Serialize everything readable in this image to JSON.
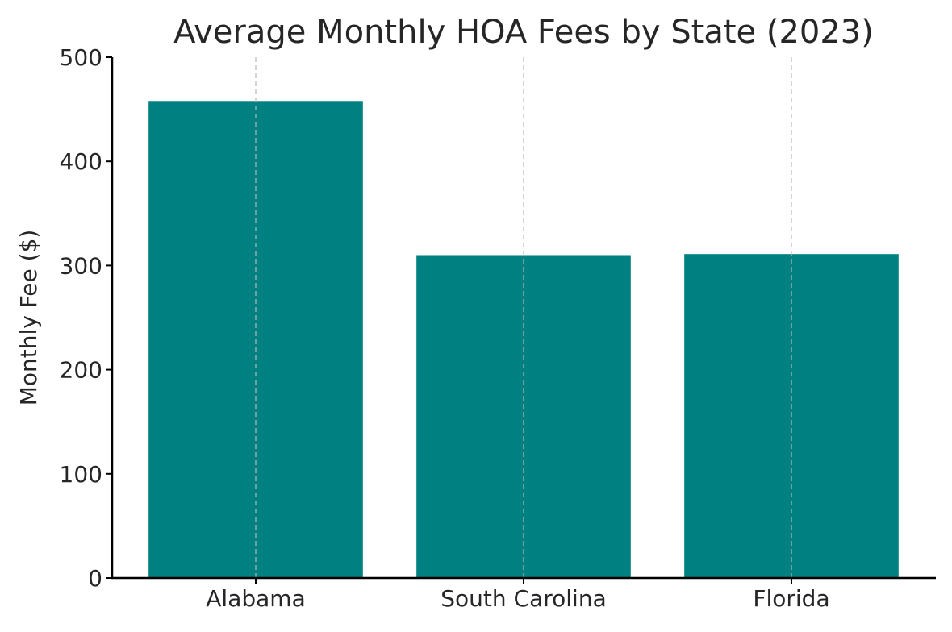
{
  "chart_data": {
    "type": "bar",
    "title": "Average Monthly HOA Fees by State (2023)",
    "xlabel": "",
    "ylabel": "Monthly Fee ($)",
    "categories": [
      "Alabama",
      "South Carolina",
      "Florida"
    ],
    "values": [
      458,
      310,
      311
    ],
    "ylim": [
      0,
      500
    ],
    "yticks": [
      0,
      100,
      200,
      300,
      400,
      500
    ],
    "grid": "vertical-dashed",
    "bar_color": "#008080",
    "grid_color": "#b8b8b8"
  }
}
